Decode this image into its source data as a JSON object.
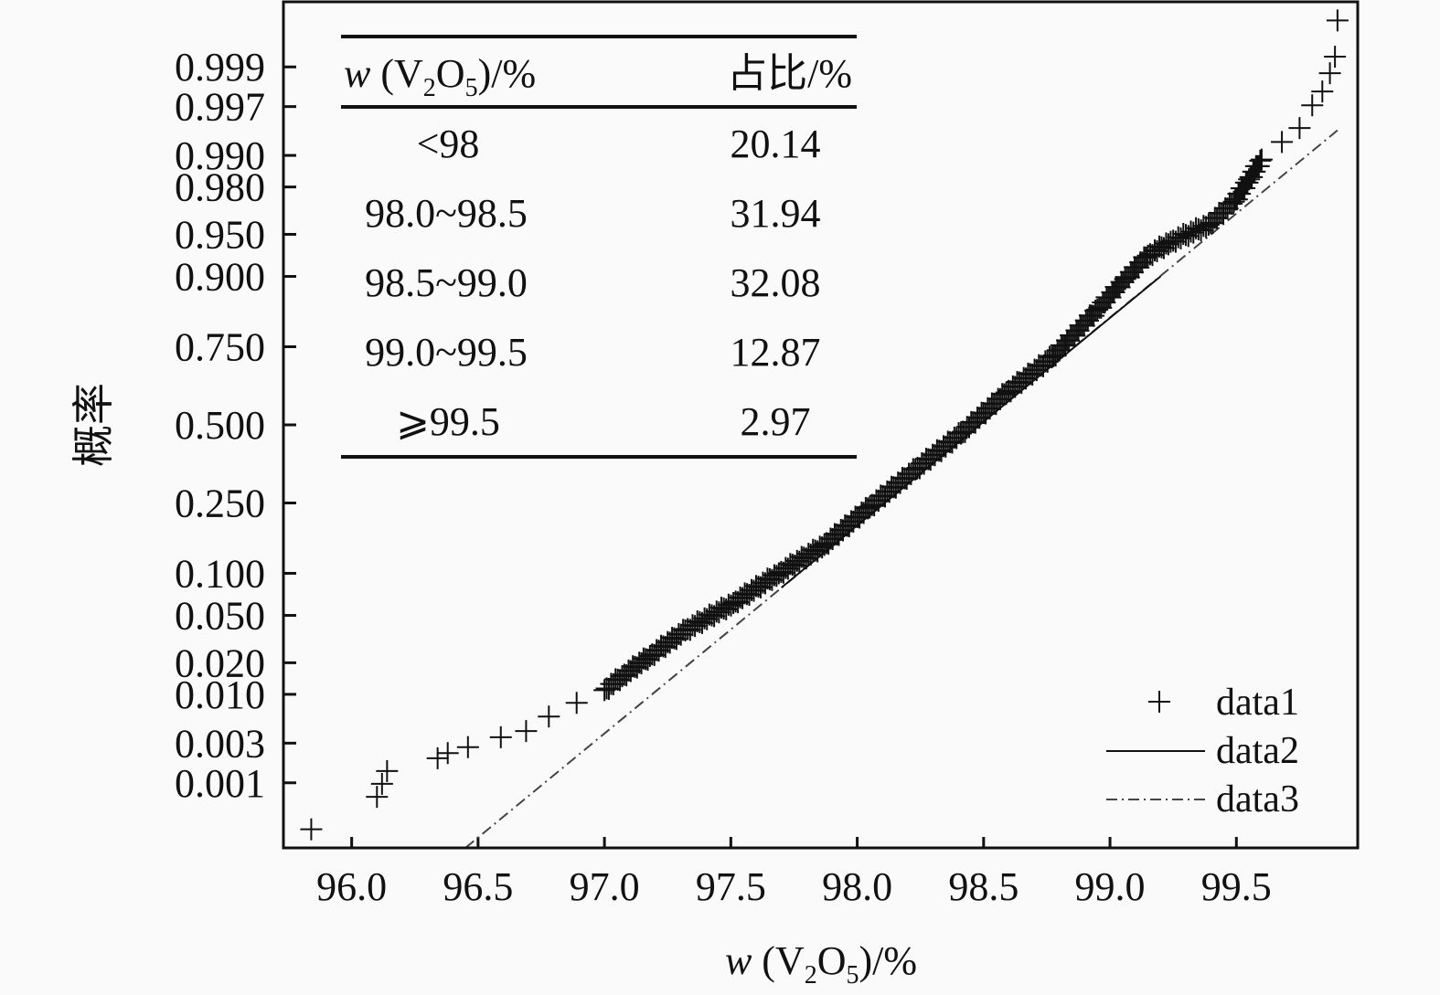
{
  "chart_data": {
    "type": "scatter",
    "scale": "normal-probability",
    "xlabel": {
      "italic": "w",
      "rest": " (V",
      "sub1": "2",
      "mid": "O",
      "sub2": "5",
      "end": ")/%"
    },
    "ylabel": "概率",
    "xlim": [
      95.73,
      99.98
    ],
    "ylim_probability": [
      0.00013,
      0.99987
    ],
    "x_ticks": [
      "96.0",
      "96.5",
      "97.0",
      "97.5",
      "98.0",
      "98.5",
      "99.0",
      "99.5"
    ],
    "y_ticks": [
      "0.999",
      "0.997",
      "0.990",
      "0.980",
      "0.950",
      "0.900",
      "0.750",
      "0.500",
      "0.250",
      "0.100",
      "0.050",
      "0.020",
      "0.010",
      "0.003",
      "0.001"
    ],
    "grid": false,
    "legend_position": "bottom-right",
    "legend": [
      "data1",
      "data2",
      "data3"
    ],
    "series": [
      {
        "name": "data1",
        "marker": "plus",
        "points": [
          [
            95.84,
            0.00024
          ],
          [
            96.1,
            0.00066
          ],
          [
            96.12,
            0.00097
          ],
          [
            96.14,
            0.0014
          ],
          [
            96.34,
            0.002
          ],
          [
            96.38,
            0.0023
          ],
          [
            96.46,
            0.0027
          ],
          [
            96.59,
            0.0035
          ],
          [
            96.69,
            0.0041
          ],
          [
            96.78,
            0.0059
          ],
          [
            96.89,
            0.0082
          ],
          [
            97.0,
            0.011
          ],
          [
            97.07,
            0.015
          ],
          [
            97.18,
            0.023
          ],
          [
            97.32,
            0.038
          ],
          [
            97.51,
            0.062
          ],
          [
            97.69,
            0.1
          ],
          [
            97.87,
            0.15
          ],
          [
            98.05,
            0.24
          ],
          [
            98.23,
            0.35
          ],
          [
            98.41,
            0.47
          ],
          [
            98.59,
            0.61
          ],
          [
            98.77,
            0.72
          ],
          [
            98.95,
            0.84
          ],
          [
            99.06,
            0.896
          ],
          [
            99.15,
            0.928
          ],
          [
            99.24,
            0.943
          ],
          [
            99.39,
            0.958
          ],
          [
            99.49,
            0.973
          ],
          [
            99.55,
            0.983
          ],
          [
            99.6,
            0.989
          ],
          [
            99.68,
            0.9927
          ],
          [
            99.75,
            0.9948
          ],
          [
            99.8,
            0.9971
          ],
          [
            99.84,
            0.998
          ],
          [
            99.87,
            0.9988
          ],
          [
            99.89,
            0.99926
          ],
          [
            99.9,
            0.99976
          ]
        ]
      },
      {
        "name": "data2",
        "style": "solid",
        "points": [
          [
            97.7,
            0.08
          ],
          [
            99.2,
            0.9
          ]
        ]
      },
      {
        "name": "data3",
        "style": "dash-dot",
        "points": [
          [
            96.45,
            0.00013
          ],
          [
            99.9,
            0.9945
          ]
        ]
      }
    ],
    "inset_table": {
      "header": {
        "col1": {
          "italic": "w",
          "rest": " (V",
          "sub1": "2",
          "mid": "O",
          "sub2": "5",
          "end": ")/%"
        },
        "col2": "占比/%"
      },
      "rows": [
        {
          "range": "<98",
          "share": "20.14"
        },
        {
          "range": "98.0~98.5",
          "share": "31.94"
        },
        {
          "range": "98.5~99.0",
          "share": "32.08"
        },
        {
          "range": "99.0~99.5",
          "share": "12.87"
        },
        {
          "range": "⩾99.5",
          "share": "2.97"
        }
      ]
    },
    "colors": {
      "ink": "#111111",
      "background": "#fafafa",
      "fit_line": "#444444"
    }
  }
}
